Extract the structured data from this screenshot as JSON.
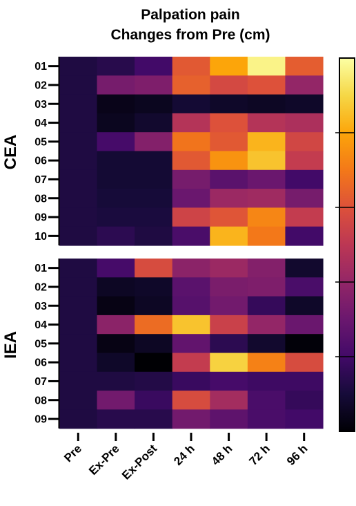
{
  "chart_data": {
    "type": "heatmap",
    "title": [
      "Palpation pain",
      "Changes from Pre (cm)"
    ],
    "columns": [
      "Pre",
      "Ex-Pre",
      "Ex-Post",
      "24 h",
      "48 h",
      "72 h",
      "96 h"
    ],
    "value_scale": [
      0,
      1
    ],
    "colormap": "inferno",
    "groups": [
      {
        "name": "CEA",
        "rows": [
          "01",
          "02",
          "03",
          "04",
          "05",
          "06",
          "07",
          "08",
          "09",
          "10"
        ],
        "values": [
          [
            0.12,
            0.14,
            0.2,
            0.62,
            0.8,
            0.97,
            0.63
          ],
          [
            0.12,
            0.33,
            0.35,
            0.64,
            0.57,
            0.6,
            0.4
          ],
          [
            0.12,
            0.04,
            0.05,
            0.09,
            0.07,
            0.06,
            0.07
          ],
          [
            0.12,
            0.05,
            0.08,
            0.48,
            0.6,
            0.48,
            0.46
          ],
          [
            0.12,
            0.21,
            0.36,
            0.69,
            0.62,
            0.83,
            0.56
          ],
          [
            0.12,
            0.09,
            0.09,
            0.62,
            0.76,
            0.86,
            0.52
          ],
          [
            0.12,
            0.09,
            0.09,
            0.33,
            0.26,
            0.3,
            0.2
          ],
          [
            0.12,
            0.1,
            0.1,
            0.3,
            0.42,
            0.43,
            0.33
          ],
          [
            0.12,
            0.11,
            0.11,
            0.55,
            0.61,
            0.73,
            0.52
          ],
          [
            0.12,
            0.15,
            0.12,
            0.22,
            0.83,
            0.7,
            0.2
          ]
        ]
      },
      {
        "name": "IEA",
        "rows": [
          "01",
          "02",
          "03",
          "04",
          "05",
          "06",
          "07",
          "08",
          "09"
        ],
        "values": [
          [
            0.12,
            0.21,
            0.58,
            0.38,
            0.42,
            0.36,
            0.08
          ],
          [
            0.12,
            0.06,
            0.07,
            0.26,
            0.34,
            0.35,
            0.22
          ],
          [
            0.12,
            0.03,
            0.06,
            0.25,
            0.32,
            0.17,
            0.07
          ],
          [
            0.12,
            0.38,
            0.67,
            0.86,
            0.54,
            0.4,
            0.3
          ],
          [
            0.12,
            0.03,
            0.06,
            0.28,
            0.15,
            0.08,
            0.01
          ],
          [
            0.12,
            0.07,
            0.0,
            0.52,
            0.89,
            0.72,
            0.58
          ],
          [
            0.12,
            0.12,
            0.13,
            0.18,
            0.21,
            0.19,
            0.19
          ],
          [
            0.12,
            0.32,
            0.18,
            0.58,
            0.44,
            0.22,
            0.17
          ],
          [
            0.12,
            0.14,
            0.14,
            0.32,
            0.27,
            0.22,
            0.2
          ]
        ]
      }
    ],
    "colorbar": {
      "discrete_steps": 5,
      "orientation": "vertical",
      "tick_labels": []
    }
  }
}
